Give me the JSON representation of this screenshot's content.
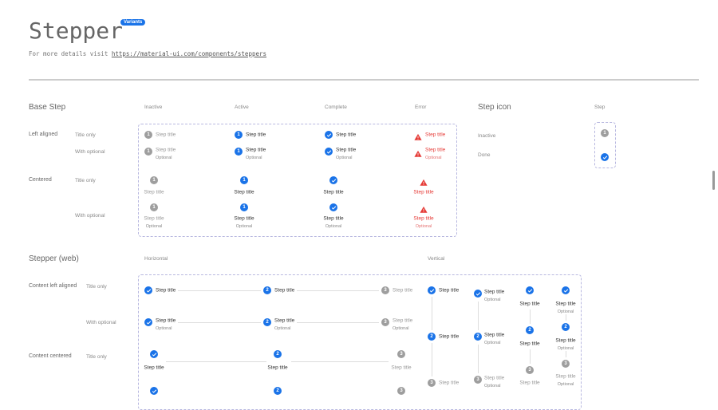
{
  "header": {
    "title": "Stepper",
    "badge": "Variants",
    "subtitle_prefix": "For more details visit ",
    "link": "https://material-ui.com/components/steppers"
  },
  "base_step": {
    "heading": "Base Step",
    "columns": [
      "Inactive",
      "Active",
      "Complete",
      "Error"
    ],
    "groups": [
      {
        "label": "Left aligned",
        "rows": [
          "Title only",
          "With optional"
        ]
      },
      {
        "label": "Centered",
        "rows": [
          "Title only",
          "With optional"
        ]
      }
    ]
  },
  "step_icon": {
    "heading": "Step icon",
    "column": "Step",
    "rows": [
      "Inactive",
      "Done"
    ]
  },
  "web": {
    "heading": "Stepper (web)",
    "horizontal": "Horizontal",
    "vertical": "Vertical",
    "groups": [
      {
        "label": "Content left aligned",
        "rows": [
          "Title only",
          "With optional"
        ]
      },
      {
        "label": "Content centered",
        "rows": [
          "Title only"
        ]
      }
    ]
  },
  "step": {
    "title": "Step title",
    "optional": "Optional",
    "number_base": "1",
    "numbers": [
      "1",
      "2",
      "3"
    ]
  },
  "colors": {
    "active": "#1a73e8",
    "inactive": "#9e9e9e",
    "error": "#e53935",
    "line": "#dddddd"
  },
  "icons": {
    "complete": "check-circle-icon",
    "error": "warning-triangle-icon"
  }
}
